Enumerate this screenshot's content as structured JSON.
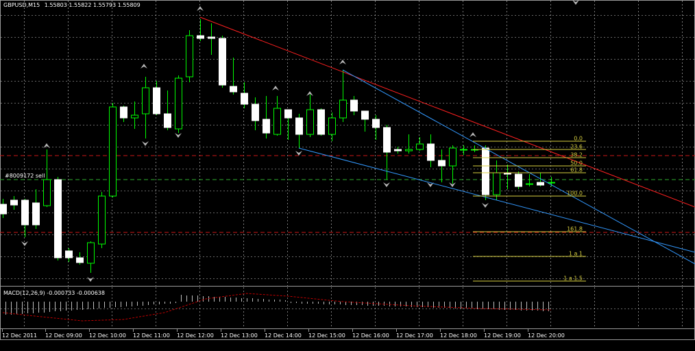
{
  "header": {
    "symbol": "GBPUSD,M15",
    "prices": "1.55803 1.55822 1.55793 1.55809"
  },
  "order_label": "#8009172 sell",
  "macd": {
    "label": "MACD(12,26,9) -0.000733 -0.000638"
  },
  "fib_levels": [
    "0.0",
    "23.6",
    "38.2",
    "50.0",
    "61.8",
    "100.0",
    "161.8",
    "1 a 1",
    "1 a 1.5"
  ],
  "time_labels": [
    "12 Dec 2011",
    "12 Dec 09:00",
    "12 Dec 10:00",
    "12 Dec 11:00",
    "12 Dec 12:00",
    "12 Dec 13:00",
    "12 Dec 14:00",
    "12 Dec 15:00",
    "12 Dec 16:00",
    "12 Dec 17:00",
    "12 Dec 18:00",
    "12 Dec 19:00",
    "12 Dec 20:00"
  ],
  "colors": {
    "bull_outline": "#00ff00",
    "bull_fill": "#000000",
    "bear_fill": "#ffffff",
    "grid": "#d0d0d0",
    "red_line": "#ff2020",
    "blue_line": "#3399ff",
    "fib": "#d8d040",
    "macd_hist": "#c0c0c0",
    "macd_signal": "#c00000"
  },
  "chart_data": {
    "type": "candlestick",
    "title": "GBPUSD,M15",
    "x": [
      "12 Dec 2011",
      "12 Dec 09:00",
      "12 Dec 10:00",
      "12 Dec 11:00",
      "12 Dec 12:00",
      "12 Dec 13:00",
      "12 Dec 14:00",
      "12 Dec 15:00",
      "12 Dec 16:00",
      "12 Dec 17:00",
      "12 Dec 18:00",
      "12 Dec 19:00",
      "12 Dec 20:00"
    ],
    "last_ohlc": [
      1.55803,
      1.55822,
      1.55793,
      1.55809
    ],
    "grid": true
  }
}
